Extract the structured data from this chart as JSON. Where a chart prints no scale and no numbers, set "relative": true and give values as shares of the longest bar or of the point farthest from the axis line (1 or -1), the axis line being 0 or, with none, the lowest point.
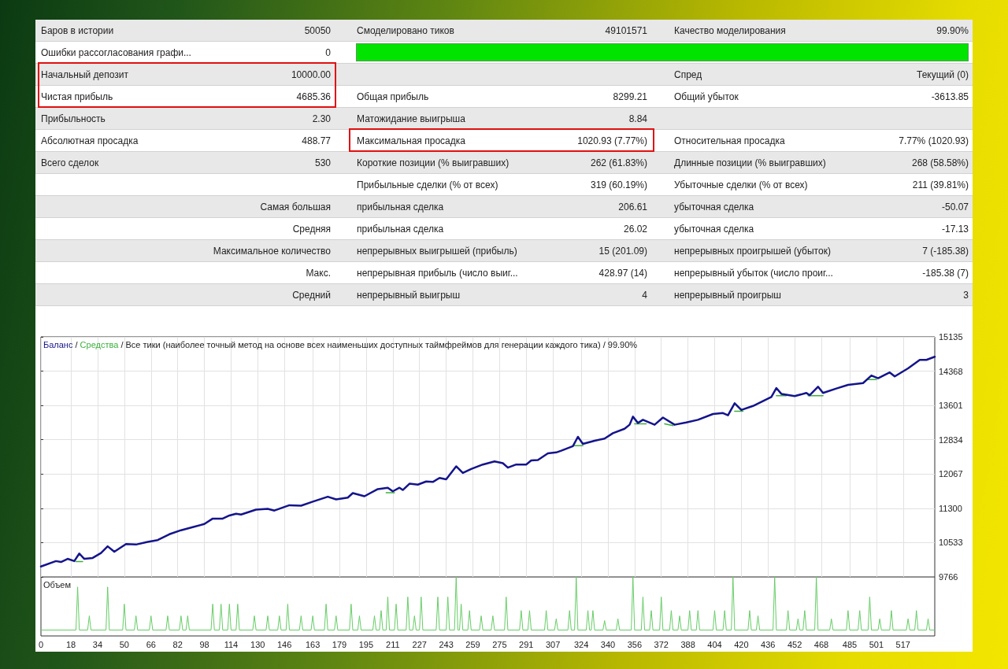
{
  "chart_data": [
    {
      "type": "other",
      "annotations": [
        "Баров в истории",
        "50050",
        "Смоделировано тиков",
        "49101571",
        "Качество моделирования",
        "99.90%",
        "Ошибки рассогласования графи...",
        "0",
        null,
        null,
        null,
        null,
        "Начальный депозит",
        "10000.00",
        null,
        null,
        "Спред",
        "Текущий (0)",
        "Чистая прибыль",
        "4685.36",
        "Общая прибыль",
        "8299.21",
        "Общий убыток",
        "-3613.85",
        "Прибыльность",
        "2.30",
        "Матожидание выигрыша",
        "8.84",
        null,
        null,
        "Абсолютная просадка",
        "488.77",
        "Максимальная просадка",
        "1020.93 (7.77%)",
        "Относительная просадка",
        "7.77% (1020.93)",
        "Всего сделок",
        "530",
        "Короткие позиции (% выигравших)",
        "262 (61.83%)",
        "Длинные позиции (% выигравших)",
        "268 (58.58%)",
        null,
        null,
        "Прибыльные сделки (% от всех)",
        "319 (60.19%)",
        "Убыточные сделки (% от всех)",
        "211 (39.81%)",
        null,
        "Самая большая",
        "прибыльная сделка",
        "206.61",
        "убыточная сделка",
        "-50.07",
        null,
        "Средняя",
        "прибыльная сделка",
        "26.02",
        "убыточная сделка",
        "-17.13",
        null,
        "Максимальное количество",
        "непрерывных выигрышей (прибыль)",
        "15 (201.09)",
        "непрерывных проигрышей (убыток)",
        "7 (-185.38)",
        null,
        "Макс.",
        "непрерывная прибыль (число выиг...",
        "428.97 (14)",
        "непрерывный убыток (число проиг...",
        "-185.38 (7)",
        null,
        "Средний",
        "непрерывный выигрыш",
        "4",
        "непрерывный проигрыш",
        "3"
      ]
    },
    {
      "type": "line",
      "title": "/ Все тики (наиболее точный метод на основе всех наименьших доступных таймфреймов для генерации каждого тика) / 99.90%",
      "annotations": [
        "/"
      ],
      "legend": "top left",
      "grid": true,
      "tick_labels": "y",
      "series": [
        {
          "name": "Баланс",
          "color": "#14148c",
          "x": [
            0,
            9,
            12,
            16,
            20,
            23,
            26,
            31,
            36,
            40,
            44,
            51,
            57,
            64,
            70,
            77,
            84,
            91,
            98,
            103,
            109,
            113,
            117,
            120,
            129,
            136,
            140,
            149,
            156,
            163,
            172,
            177,
            184,
            187,
            194,
            202,
            208,
            211,
            215,
            217,
            221,
            226,
            231,
            235,
            239,
            243,
            249,
            253,
            258,
            265,
            272,
            277,
            280,
            285,
            291,
            294,
            298,
            304,
            309,
            312,
            319,
            322,
            325,
            332,
            338,
            343,
            350,
            353,
            355,
            358,
            361,
            368,
            373,
            380,
            387,
            394,
            403,
            409,
            412,
            416,
            420,
            427,
            438,
            441,
            444,
            452,
            459,
            461,
            466,
            469,
            477,
            484,
            493,
            498,
            502,
            509,
            512,
            520,
            527,
            531,
            536
          ],
          "values": [
            10000,
            10120,
            10100,
            10170,
            10120,
            10290,
            10170,
            10190,
            10300,
            10450,
            10330,
            10500,
            10490,
            10550,
            10590,
            10720,
            10810,
            10880,
            10950,
            11070,
            11070,
            11140,
            11180,
            11160,
            11270,
            11290,
            11250,
            11370,
            11360,
            11450,
            11560,
            11500,
            11540,
            11640,
            11570,
            11730,
            11760,
            11680,
            11760,
            11710,
            11850,
            11830,
            11900,
            11890,
            11980,
            11950,
            12240,
            12090,
            12180,
            12280,
            12350,
            12310,
            12210,
            12280,
            12280,
            12370,
            12380,
            12530,
            12550,
            12590,
            12690,
            12900,
            12740,
            12810,
            12860,
            12980,
            13080,
            13170,
            13350,
            13210,
            13280,
            13170,
            13330,
            13170,
            13220,
            13280,
            13410,
            13430,
            13380,
            13650,
            13500,
            13590,
            13790,
            13990,
            13860,
            13810,
            13880,
            13830,
            14020,
            13880,
            13980,
            14060,
            14100,
            14270,
            14210,
            14340,
            14250,
            14430,
            14620,
            14620,
            14690
          ]
        },
        {
          "name": "Средства",
          "color": "#3cb03c",
          "x": [
            21,
            25,
            26,
            207,
            212,
            213,
            320,
            325,
            326,
            356,
            363,
            364,
            374,
            379,
            380,
            416,
            421,
            422,
            441,
            447,
            448,
            460,
            469,
            470,
            496,
            501
          ],
          "values": [
            10110,
            10110,
            null,
            11650,
            11650,
            null,
            12700,
            12700,
            null,
            13190,
            13190,
            null,
            13190,
            13150,
            null,
            13470,
            13470,
            null,
            13820,
            13820,
            null,
            13820,
            13820,
            null,
            14180,
            14180
          ]
        }
      ],
      "xlim": [
        0,
        536
      ],
      "xticks": [
        0,
        18,
        34,
        50,
        66,
        82,
        98,
        114,
        130,
        146,
        163,
        179,
        195,
        211,
        227,
        243,
        259,
        275,
        291,
        307,
        324,
        340,
        356,
        372,
        388,
        404,
        420,
        436,
        452,
        468,
        485,
        501,
        517
      ],
      "ylim": [
        9766,
        15135
      ],
      "yticks": [
        9766,
        10533,
        11300,
        12067,
        12834,
        13601,
        14368,
        15135
      ]
    },
    {
      "type": "line",
      "title": "Объем",
      "relative": true,
      "tick_labels": "x",
      "color": "#66cc66",
      "x": [
        0,
        21,
        22,
        23,
        28,
        29,
        30,
        39,
        40,
        41,
        49,
        50,
        51,
        56,
        57,
        58,
        65,
        66,
        67,
        75,
        76,
        77,
        83,
        84,
        85,
        87,
        88,
        89,
        102,
        103,
        104,
        107,
        108,
        109,
        112,
        113,
        114,
        117,
        118,
        119,
        127,
        128,
        129,
        135,
        136,
        137,
        142,
        143,
        144,
        147,
        148,
        149,
        155,
        156,
        157,
        162,
        163,
        164,
        170,
        171,
        172,
        176,
        177,
        178,
        185,
        186,
        187,
        190,
        191,
        192,
        199,
        200,
        201,
        203,
        204,
        205,
        207,
        208,
        209,
        212,
        213,
        214,
        219,
        220,
        221,
        223,
        224,
        225,
        227,
        228,
        229,
        237,
        238,
        239,
        243,
        244,
        245,
        248,
        249,
        250,
        251,
        252,
        253,
        256,
        257,
        258,
        263,
        264,
        265,
        270,
        271,
        272,
        278,
        279,
        280,
        287,
        288,
        289,
        292,
        293,
        294,
        302,
        303,
        304,
        308,
        309,
        310,
        316,
        317,
        318,
        320,
        321,
        322,
        327,
        328,
        329,
        330,
        331,
        332,
        337,
        338,
        339,
        345,
        346,
        347,
        354,
        355,
        356,
        360,
        361,
        362,
        365,
        366,
        367,
        371,
        372,
        373,
        377,
        378,
        379,
        382,
        383,
        384,
        388,
        389,
        390,
        393,
        394,
        395,
        403,
        404,
        405,
        409,
        410,
        411,
        414,
        415,
        416,
        424,
        425,
        426,
        429,
        430,
        431,
        439,
        440,
        441,
        447,
        448,
        449,
        453,
        454,
        455,
        457,
        458,
        459,
        464,
        465,
        466,
        473,
        474,
        475,
        483,
        484,
        485,
        490,
        491,
        492,
        496,
        497,
        498,
        502,
        503,
        504,
        509,
        510,
        511,
        519,
        520,
        521,
        524,
        525,
        526,
        531,
        532,
        533,
        536
      ],
      "values": [
        0.1,
        0.1,
        0.83,
        0.1,
        0.1,
        0.34,
        0.1,
        0.1,
        0.83,
        0.1,
        0.1,
        0.54,
        0.1,
        0.1,
        0.34,
        0.1,
        0.1,
        0.34,
        0.1,
        0.1,
        0.34,
        0.1,
        0.1,
        0.34,
        0.1,
        0.1,
        0.34,
        0.1,
        0.1,
        0.54,
        0.1,
        0.1,
        0.54,
        0.1,
        0.1,
        0.54,
        0.1,
        0.1,
        0.54,
        0.1,
        0.1,
        0.34,
        0.1,
        0.1,
        0.34,
        0.1,
        0.1,
        0.34,
        0.1,
        0.1,
        0.54,
        0.1,
        0.1,
        0.34,
        0.1,
        0.1,
        0.34,
        0.1,
        0.1,
        0.54,
        0.1,
        0.1,
        0.34,
        0.1,
        0.1,
        0.54,
        0.1,
        0.1,
        0.34,
        0.1,
        0.1,
        0.34,
        0.1,
        0.1,
        0.43,
        0.1,
        0.1,
        0.66,
        0.1,
        0.1,
        0.54,
        0.1,
        0.1,
        0.66,
        0.1,
        0.1,
        0.34,
        0.1,
        0.1,
        0.66,
        0.1,
        0.1,
        0.66,
        0.1,
        0.1,
        0.66,
        0.1,
        0.1,
        1,
        0.1,
        0.1,
        0.54,
        0.1,
        0.1,
        0.43,
        0.1,
        0.1,
        0.34,
        0.1,
        0.1,
        0.34,
        0.1,
        0.1,
        0.66,
        0.1,
        0.1,
        0.43,
        0.1,
        0.1,
        0.43,
        0.1,
        0.1,
        0.43,
        0.1,
        0.1,
        0.29,
        0.1,
        0.1,
        0.43,
        0.1,
        0.1,
        1,
        0.1,
        0.1,
        0.43,
        0.1,
        0.1,
        0.43,
        0.1,
        0.1,
        0.26,
        0.1,
        0.1,
        0.29,
        0.1,
        0.1,
        1,
        0.1,
        0.1,
        0.66,
        0.1,
        0.1,
        0.43,
        0.1,
        0.1,
        0.66,
        0.1,
        0.1,
        0.43,
        0.1,
        0.1,
        0.34,
        0.1,
        0.1,
        0.43,
        0.1,
        0.1,
        0.43,
        0.1,
        0.1,
        0.43,
        0.1,
        0.1,
        0.43,
        0.1,
        0.1,
        1,
        0.1,
        0.1,
        0.43,
        0.1,
        0.1,
        0.34,
        0.1,
        0.1,
        1,
        0.1,
        0.1,
        0.43,
        0.1,
        0.1,
        0.29,
        0.1,
        0.1,
        0.43,
        0.1,
        0.1,
        1,
        0.1,
        0.1,
        0.29,
        0.1,
        0.1,
        0.43,
        0.1,
        0.1,
        0.43,
        0.1,
        0.1,
        0.66,
        0.1,
        0.1,
        0.29,
        0.1,
        0.1,
        0.43,
        0.1,
        0.1,
        0.29,
        0.1,
        0.1,
        0.43,
        0.1,
        0.1,
        0.29,
        0.1,
        0.1
      ],
      "xlim": [
        0,
        536
      ],
      "xticks": [
        0,
        18,
        34,
        50,
        66,
        82,
        98,
        114,
        130,
        146,
        163,
        179,
        195,
        211,
        227,
        243,
        259,
        275,
        291,
        307,
        324,
        340,
        356,
        372,
        388,
        404,
        420,
        436,
        452,
        468,
        485,
        501,
        517
      ]
    }
  ]
}
